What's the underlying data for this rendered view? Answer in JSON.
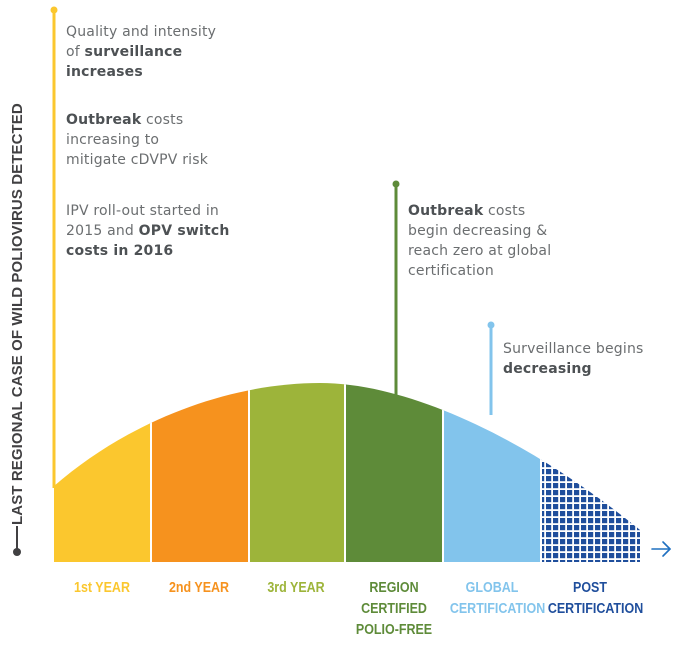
{
  "y_axis_label": "LAST REGIONAL CASE OF WILD POLIOVIRUS DETECTED",
  "annotations": [
    {
      "parts": [
        {
          "text": "Quality and intensity",
          "bold": false
        },
        {
          "text": "\n",
          "bold": false
        },
        {
          "text": "of ",
          "bold": false
        },
        {
          "text": "surveillance",
          "bold": true
        },
        {
          "text": "\n",
          "bold": false
        },
        {
          "text": "increases",
          "bold": true
        }
      ]
    },
    {
      "parts": [
        {
          "text": "Outbreak",
          "bold": true
        },
        {
          "text": " costs",
          "bold": false
        },
        {
          "text": "\n",
          "bold": false
        },
        {
          "text": "increasing to",
          "bold": false
        },
        {
          "text": "\n",
          "bold": false
        },
        {
          "text": "mitigate cDVPV risk",
          "bold": false
        }
      ]
    },
    {
      "parts": [
        {
          "text": "IPV roll-out started in",
          "bold": false
        },
        {
          "text": "\n",
          "bold": false
        },
        {
          "text": "2015 and ",
          "bold": false
        },
        {
          "text": "OPV switch",
          "bold": true
        },
        {
          "text": "\n",
          "bold": false
        },
        {
          "text": "costs in 2016",
          "bold": true
        }
      ]
    },
    {
      "parts": [
        {
          "text": "Outbreak",
          "bold": true
        },
        {
          "text": " costs",
          "bold": false
        },
        {
          "text": "\n",
          "bold": false
        },
        {
          "text": "begin decreasing &",
          "bold": false
        },
        {
          "text": "\n",
          "bold": false
        },
        {
          "text": "reach zero at global",
          "bold": false
        },
        {
          "text": "\n",
          "bold": false
        },
        {
          "text": "certification",
          "bold": false
        }
      ]
    },
    {
      "parts": [
        {
          "text": "Surveillance begins",
          "bold": false
        },
        {
          "text": "\n",
          "bold": false
        },
        {
          "text": "decreasing",
          "bold": true
        }
      ]
    }
  ],
  "phases": [
    {
      "label": "1st YEAR",
      "color": "#fbc72e"
    },
    {
      "label": "2nd YEAR",
      "color": "#f6921e"
    },
    {
      "label": "3rd YEAR",
      "color": "#9db43a"
    },
    {
      "label": "REGION\nCERTIFIED\nPOLIO-FREE",
      "color": "#5e8b39"
    },
    {
      "label": "GLOBAL\nCERTIFICATION",
      "color": "#82c4ec"
    },
    {
      "label": "POST\nCERTIFICATION",
      "color": "#1f4e9c",
      "pattern": "grid"
    }
  ],
  "colors": {
    "axis_marker": "#414042",
    "arrow": "#1f70c1",
    "text": "#6b6e70"
  }
}
